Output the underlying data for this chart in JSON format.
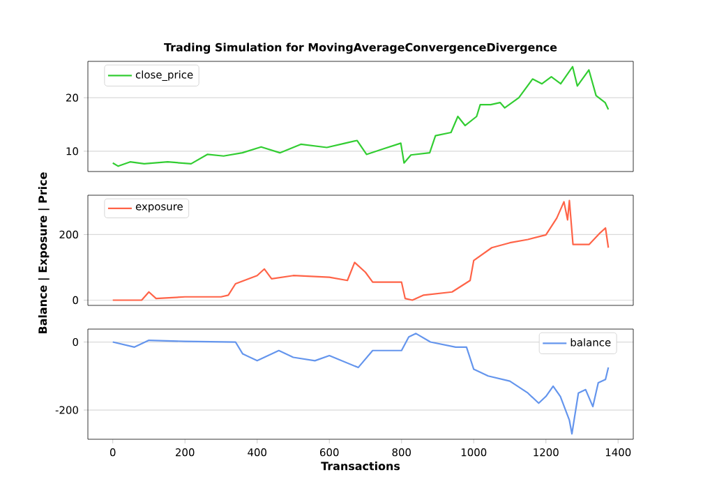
{
  "chart_data": [
    {
      "type": "line",
      "title": "Trading Simulation for MovingAverageConvergenceDivergence",
      "xlim": [
        -69,
        1442
      ],
      "ylim": [
        6.2,
        26.8
      ],
      "yticks": [
        10,
        20
      ],
      "grid": "y",
      "legend": "top left",
      "tick_labels": "y",
      "line_style": "solid",
      "series": [
        {
          "name": "close_price",
          "color": "#32cd32",
          "x": [
            0,
            15,
            48,
            87,
            152,
            217,
            262,
            307,
            359,
            411,
            463,
            521,
            593,
            644,
            677,
            703,
            748,
            798,
            807,
            826,
            878,
            894,
            937,
            956,
            976,
            1008,
            1018,
            1047,
            1073,
            1086,
            1125,
            1163,
            1189,
            1215,
            1241,
            1274,
            1287,
            1319,
            1339,
            1364,
            1373
          ],
          "values": [
            7.8,
            7.2,
            8.0,
            7.65,
            8.0,
            7.65,
            9.4,
            9.1,
            9.7,
            10.8,
            9.7,
            11.3,
            10.7,
            11.5,
            12.0,
            9.4,
            10.4,
            11.5,
            7.8,
            9.3,
            9.7,
            12.9,
            13.5,
            16.5,
            14.8,
            16.5,
            18.7,
            18.7,
            19.1,
            18.1,
            20.0,
            23.5,
            22.6,
            23.9,
            22.6,
            25.8,
            22.2,
            25.2,
            20.4,
            19.1,
            17.8
          ]
        }
      ]
    },
    {
      "type": "line",
      "ylabel": "Balance | Exposure | Price",
      "xlim": [
        -69,
        1442
      ],
      "ylim": [
        -16,
        320
      ],
      "yticks": [
        0,
        200
      ],
      "grid": "y",
      "legend": "top left",
      "tick_labels": "y",
      "line_style": "solid",
      "series": [
        {
          "name": "exposure",
          "color": "#ff6347",
          "x": [
            0,
            80,
            100,
            120,
            200,
            300,
            320,
            340,
            400,
            420,
            440,
            500,
            600,
            650,
            670,
            700,
            720,
            800,
            810,
            830,
            860,
            940,
            990,
            1000,
            1050,
            1100,
            1150,
            1200,
            1230,
            1250,
            1260,
            1265,
            1275,
            1320,
            1350,
            1365,
            1373
          ],
          "values": [
            0,
            0,
            25,
            5,
            10,
            10,
            15,
            50,
            75,
            95,
            65,
            75,
            70,
            60,
            115,
            85,
            55,
            55,
            5,
            0,
            15,
            25,
            60,
            121,
            160,
            175,
            185,
            199,
            250,
            300,
            245,
            304,
            170,
            170,
            205,
            220,
            160
          ]
        }
      ]
    },
    {
      "type": "line",
      "xlabel": "Transactions",
      "xlim": [
        -69,
        1442
      ],
      "xticks": [
        0,
        200,
        400,
        600,
        800,
        1000,
        1200,
        1400
      ],
      "ylim": [
        -286,
        38
      ],
      "yticks": [
        -200,
        0
      ],
      "grid": "y",
      "legend": "top right",
      "line_style": "solid",
      "series": [
        {
          "name": "balance",
          "color": "#6495ed",
          "x": [
            0,
            60,
            100,
            200,
            340,
            360,
            400,
            460,
            500,
            560,
            600,
            680,
            720,
            800,
            820,
            840,
            880,
            950,
            980,
            1000,
            1040,
            1100,
            1150,
            1180,
            1200,
            1220,
            1240,
            1265,
            1272,
            1290,
            1310,
            1330,
            1345,
            1365,
            1373
          ],
          "values": [
            0,
            -15,
            5,
            2,
            0,
            -35,
            -55,
            -25,
            -45,
            -55,
            -40,
            -75,
            -25,
            -25,
            15,
            25,
            0,
            -15,
            -15,
            -80,
            -100,
            -115,
            -150,
            -180,
            -160,
            -130,
            -160,
            -230,
            -270,
            -150,
            -140,
            -190,
            -120,
            -110,
            -75
          ]
        }
      ]
    }
  ]
}
